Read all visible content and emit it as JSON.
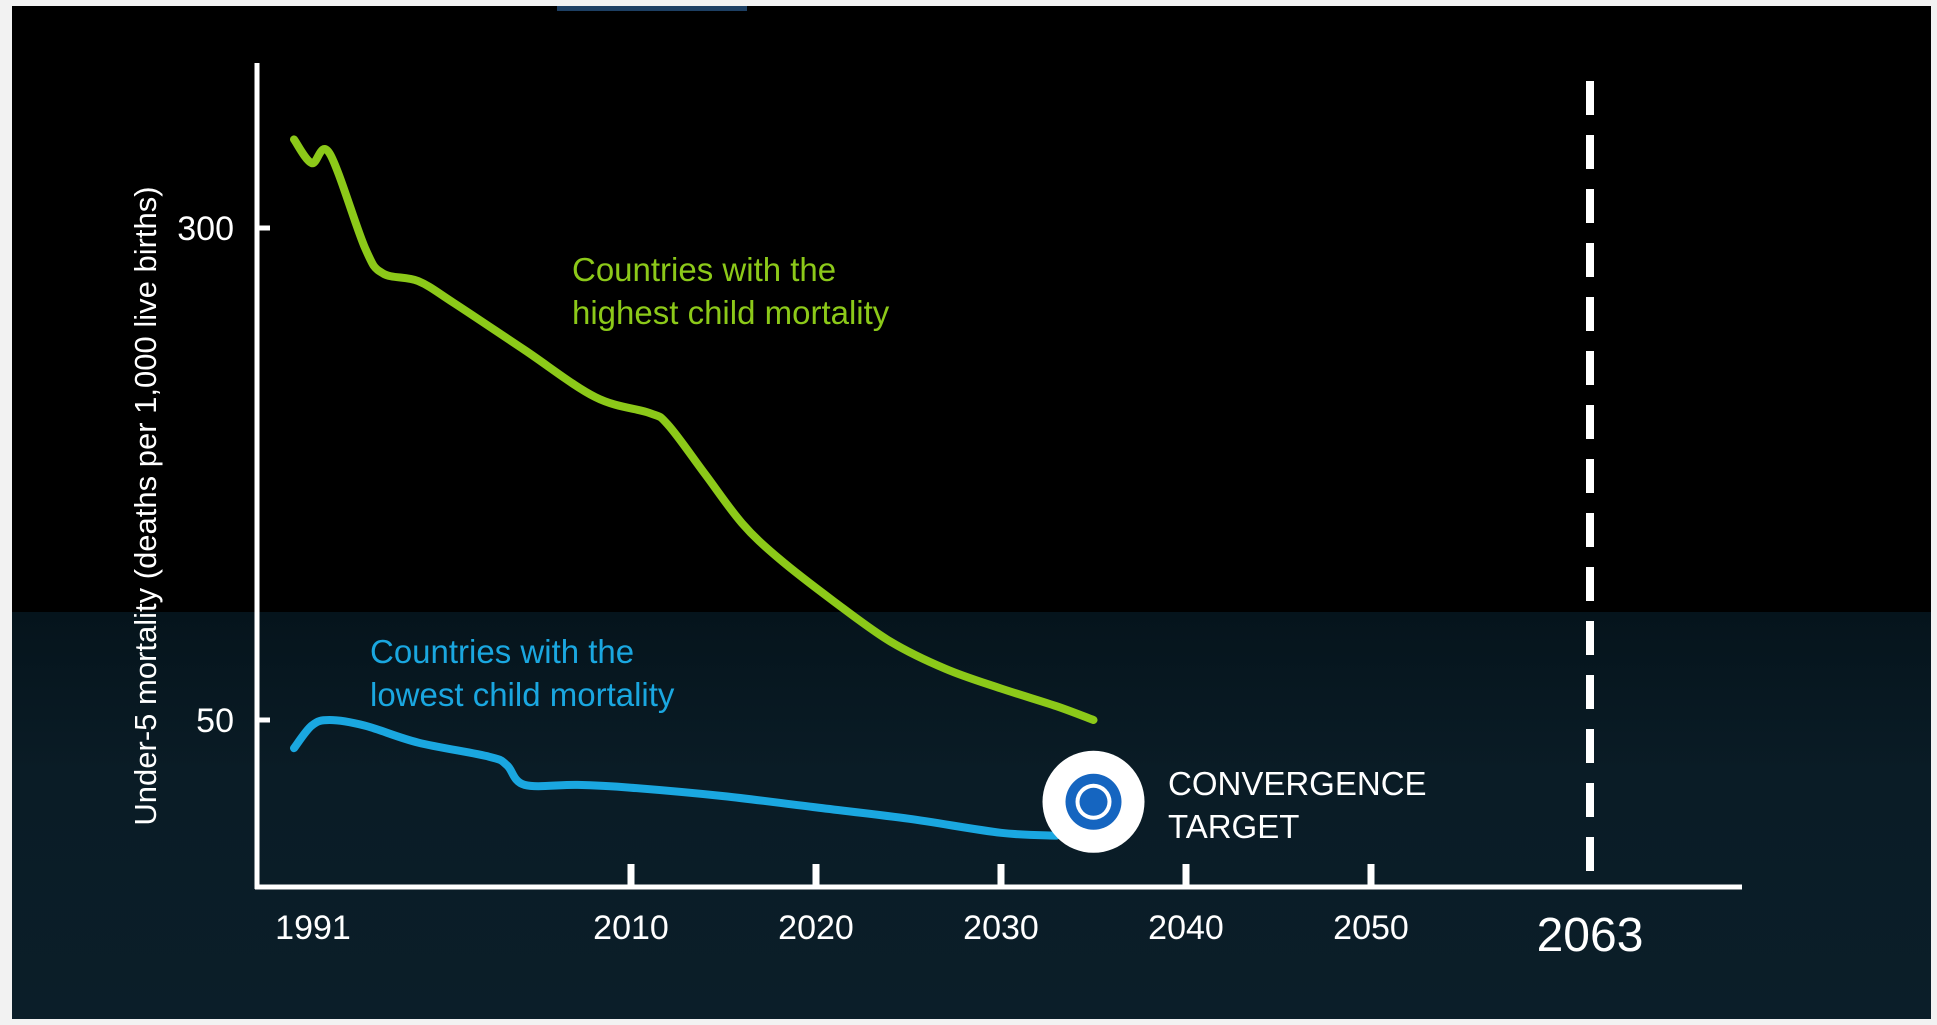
{
  "chart_data": {
    "type": "line",
    "xlabel": "",
    "ylabel": "Under-5 mortality (deaths per 1,000 live births)",
    "x_ticks": [
      "1991",
      "2010",
      "2020",
      "2030",
      "2040",
      "2050",
      "2063"
    ],
    "y_ticks": [
      "300",
      "50"
    ],
    "series": [
      {
        "name": "Countries with the highest child mortality",
        "label_lines": [
          "Countries with the",
          "highest child mortality"
        ],
        "color": "#8cc919",
        "points": [
          [
            1991,
            345
          ],
          [
            1992,
            333
          ],
          [
            1993,
            338
          ],
          [
            1995,
            290
          ],
          [
            1996,
            277
          ],
          [
            1998,
            273
          ],
          [
            2000,
            262
          ],
          [
            2004,
            238
          ],
          [
            2008,
            214
          ],
          [
            2011,
            206
          ],
          [
            2012,
            200
          ],
          [
            2014,
            175
          ],
          [
            2016,
            150
          ],
          [
            2018,
            132
          ],
          [
            2021,
            110
          ],
          [
            2024,
            90
          ],
          [
            2027,
            76
          ],
          [
            2030,
            66
          ],
          [
            2033,
            57
          ],
          [
            2035,
            50
          ]
        ]
      },
      {
        "name": "Countries with the lowest child mortality",
        "label_lines": [
          "Countries with the",
          "lowest child mortality"
        ],
        "color": "#1aa7e0",
        "points": [
          [
            1991,
            40
          ],
          [
            1992,
            48
          ],
          [
            1993,
            50
          ],
          [
            1995,
            48
          ],
          [
            1998,
            42
          ],
          [
            2002,
            37
          ],
          [
            2003,
            34
          ],
          [
            2004,
            27
          ],
          [
            2007,
            27
          ],
          [
            2010,
            26
          ],
          [
            2015,
            23
          ],
          [
            2020,
            19
          ],
          [
            2025,
            15
          ],
          [
            2030,
            10
          ],
          [
            2033,
            9
          ]
        ]
      }
    ],
    "annotations": {
      "convergence_target": {
        "x": 2035,
        "y": 21,
        "label_lines": [
          "CONVERGENCE",
          "TARGET"
        ]
      },
      "target_year_line": {
        "x": 2063
      }
    },
    "ylim": [
      0,
      370
    ],
    "grid": false,
    "colors": {
      "highest": "#8cc919",
      "lowest": "#1aa7e0",
      "target_ring": "#1565c0",
      "axis": "#ffffff"
    }
  }
}
